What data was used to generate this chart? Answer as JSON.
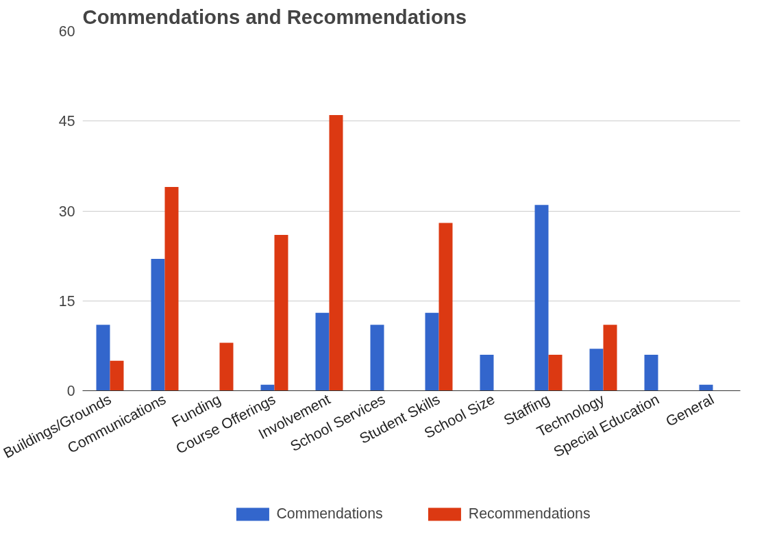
{
  "chart_data": {
    "type": "bar",
    "title": "Commendations and Recommendations",
    "categories": [
      "Buildings/Grounds",
      "Communications",
      "Funding",
      "Course Offerings",
      "Involvement",
      "School Services",
      "Student Skills",
      "School Size",
      "Staffing",
      "Technology",
      "Special Education",
      "General"
    ],
    "series": [
      {
        "name": "Commendations",
        "color": "#3366cc",
        "values": [
          11,
          22,
          0,
          1,
          13,
          11,
          13,
          6,
          31,
          7,
          6,
          1
        ]
      },
      {
        "name": "Recommendations",
        "color": "#dc3912",
        "values": [
          5,
          34,
          8,
          26,
          46,
          0,
          28,
          0,
          6,
          11,
          0,
          0
        ]
      }
    ],
    "ylim": [
      0,
      60
    ],
    "yticks": [
      0,
      15,
      30,
      45,
      60
    ],
    "grid": "y",
    "legend": "bottom"
  }
}
